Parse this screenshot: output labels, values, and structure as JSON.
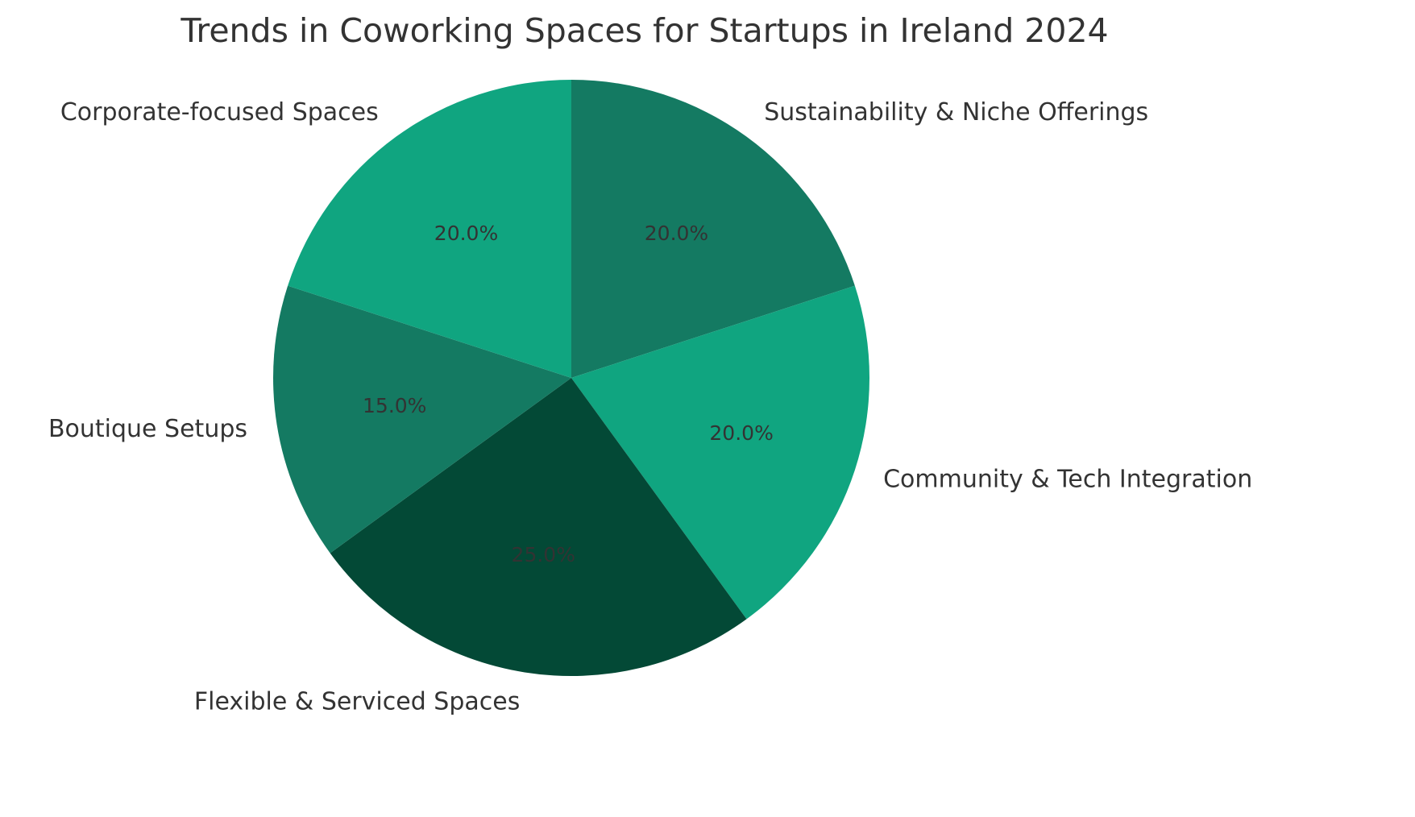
{
  "chart_data": {
    "type": "pie",
    "title": "Trends in Coworking Spaces for Startups in Ireland 2024",
    "start_angle_deg": 90,
    "direction": "clockwise",
    "slices": [
      {
        "label": "Sustainability & Niche Offerings",
        "value": 20.0,
        "pct_label": "20.0%",
        "color": "#147a62"
      },
      {
        "label": "Community & Tech Integration",
        "value": 20.0,
        "pct_label": "20.0%",
        "color": "#10a580"
      },
      {
        "label": "Flexible & Serviced Spaces",
        "value": 25.0,
        "pct_label": "25.0%",
        "color": "#034936"
      },
      {
        "label": "Boutique Setups",
        "value": 15.0,
        "pct_label": "15.0%",
        "color": "#147a62"
      },
      {
        "label": "Corporate-focused Spaces",
        "value": 20.0,
        "pct_label": "20.0%",
        "color": "#10a580"
      }
    ]
  }
}
